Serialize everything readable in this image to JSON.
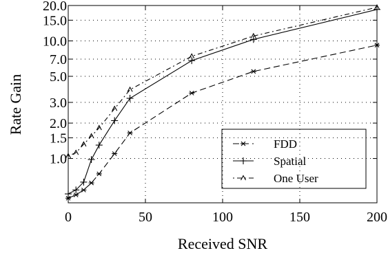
{
  "chart_data": {
    "type": "line",
    "xlabel": "Received SNR",
    "ylabel": "Rate Gain",
    "xlim": [
      0,
      200
    ],
    "ylim": [
      0.42,
      20.0
    ],
    "yscale": "log",
    "grid": true,
    "legend_position": "lower-right",
    "x_ticks": [
      0,
      50,
      100,
      150,
      200
    ],
    "x_tick_labels": [
      "0",
      "50",
      "100",
      "150",
      "200"
    ],
    "y_ticks": [
      1.0,
      1.5,
      2.0,
      3.0,
      5.0,
      7.0,
      10.0,
      15.0,
      20.0
    ],
    "y_tick_labels": [
      "1.0",
      "1.5",
      "2.0",
      "3.0",
      "5.0",
      "7.0",
      "10.0",
      "15.0",
      "20.0"
    ],
    "series": [
      {
        "name": "FDD",
        "marker": "*",
        "line_style": "dashed",
        "x": [
          0,
          5,
          10,
          15,
          20,
          30,
          40,
          80,
          120,
          200
        ],
        "y": [
          0.46,
          0.49,
          0.54,
          0.62,
          0.74,
          1.1,
          1.65,
          3.6,
          5.5,
          9.2
        ]
      },
      {
        "name": "Spatial",
        "marker": "+",
        "line_style": "solid",
        "x": [
          0,
          5,
          10,
          15,
          20,
          30,
          40,
          80,
          120,
          200
        ],
        "y": [
          0.5,
          0.54,
          0.63,
          0.98,
          1.3,
          2.1,
          3.25,
          6.8,
          10.3,
          18.5
        ]
      },
      {
        "name": "One User",
        "marker": "^",
        "line_style": "dash-dot",
        "x": [
          0,
          5,
          10,
          15,
          20,
          30,
          40,
          80,
          120,
          200
        ],
        "y": [
          1.05,
          1.12,
          1.32,
          1.55,
          1.82,
          2.65,
          3.85,
          7.4,
          11.0,
          19.3
        ]
      }
    ]
  }
}
